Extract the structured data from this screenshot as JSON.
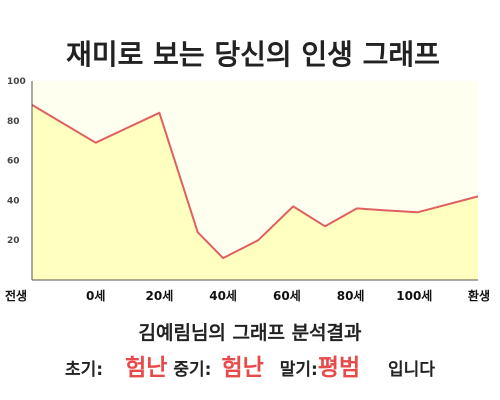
{
  "chart_data": {
    "type": "area",
    "title": "재미로 보는 당신의 인생 그래프",
    "categories": [
      "전생",
      "0세",
      "20세",
      "40세",
      "60세",
      "80세",
      "100세",
      "환생"
    ],
    "x": [
      -20,
      0,
      20,
      40,
      60,
      80,
      100,
      120
    ],
    "series": [
      {
        "values": [
          {
            "x": -20,
            "y": 88
          },
          {
            "x": 0,
            "y": 69
          },
          {
            "x": 20,
            "y": 84
          },
          {
            "x": 32,
            "y": 24
          },
          {
            "x": 40,
            "y": 11
          },
          {
            "x": 51,
            "y": 20
          },
          {
            "x": 62,
            "y": 37
          },
          {
            "x": 72,
            "y": 27
          },
          {
            "x": 82,
            "y": 36
          },
          {
            "x": 91,
            "y": 35
          },
          {
            "x": 101,
            "y": 34
          },
          {
            "x": 120,
            "y": 42
          }
        ]
      }
    ],
    "yticks": [
      20,
      40,
      60,
      80,
      100
    ],
    "ylim": [
      0,
      100
    ],
    "xlim": [
      -20,
      120
    ],
    "grid": false,
    "line_color": "#e06060",
    "fill_color": "#ffffc0",
    "plot_background": "#fffff0"
  },
  "summary": {
    "title": "김예림님의 그래프 분석결과",
    "early_label": "초기:",
    "early_value": "험난",
    "middle_label": "중기:",
    "middle_value": "험난",
    "late_label": "말기:",
    "late_value": "평범",
    "suffix": "입니다"
  },
  "colors": {
    "accent": "#e84a4a",
    "text": "#222222"
  }
}
